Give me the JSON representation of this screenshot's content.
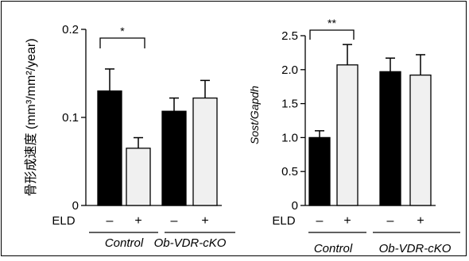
{
  "chart_data": [
    {
      "type": "bar",
      "ylabel": "骨形成速度 (mm³/mm²/year)",
      "ylim": [
        0,
        0.2
      ],
      "yticks": [
        {
          "value": 0,
          "label": "0"
        },
        {
          "value": 0.1,
          "label": "0.1"
        },
        {
          "value": 0.2,
          "label": "0.2"
        }
      ],
      "treatment_label": "ELD",
      "treatment_signs": [
        "–",
        "+",
        "–",
        "+"
      ],
      "groups": [
        "Control",
        "Ob-VDR-cKO"
      ],
      "bars": [
        {
          "group": "Control",
          "eld": "–",
          "value": 0.13,
          "error": 0.025,
          "fill": "#000000"
        },
        {
          "group": "Control",
          "eld": "+",
          "value": 0.065,
          "error": 0.012,
          "fill": "#f0f0f0"
        },
        {
          "group": "Ob-VDR-cKO",
          "eld": "–",
          "value": 0.107,
          "error": 0.015,
          "fill": "#000000"
        },
        {
          "group": "Ob-VDR-cKO",
          "eld": "+",
          "value": 0.122,
          "error": 0.02,
          "fill": "#f0f0f0"
        }
      ],
      "significance": [
        {
          "between": [
            0,
            1
          ],
          "label": "*"
        }
      ]
    },
    {
      "type": "bar",
      "ylabel": "Sost/Gapdh",
      "ylim": [
        0,
        2.5
      ],
      "yticks": [
        {
          "value": 0,
          "label": "0"
        },
        {
          "value": 0.5,
          "label": "0.5"
        },
        {
          "value": 1.0,
          "label": "1.0"
        },
        {
          "value": 1.5,
          "label": "1.5"
        },
        {
          "value": 2.0,
          "label": "2.0"
        },
        {
          "value": 2.5,
          "label": "2.5"
        }
      ],
      "treatment_label": "ELD",
      "treatment_signs": [
        "–",
        "+",
        "–",
        "+"
      ],
      "groups": [
        "Control",
        "Ob-VDR-cKO"
      ],
      "bars": [
        {
          "group": "Control",
          "eld": "–",
          "value": 1.0,
          "error": 0.1,
          "fill": "#000000"
        },
        {
          "group": "Control",
          "eld": "+",
          "value": 2.07,
          "error": 0.3,
          "fill": "#f0f0f0"
        },
        {
          "group": "Ob-VDR-cKO",
          "eld": "–",
          "value": 1.97,
          "error": 0.2,
          "fill": "#000000"
        },
        {
          "group": "Ob-VDR-cKO",
          "eld": "+",
          "value": 1.92,
          "error": 0.3,
          "fill": "#f0f0f0"
        }
      ],
      "significance": [
        {
          "between": [
            0,
            1
          ],
          "label": "**"
        }
      ]
    }
  ]
}
